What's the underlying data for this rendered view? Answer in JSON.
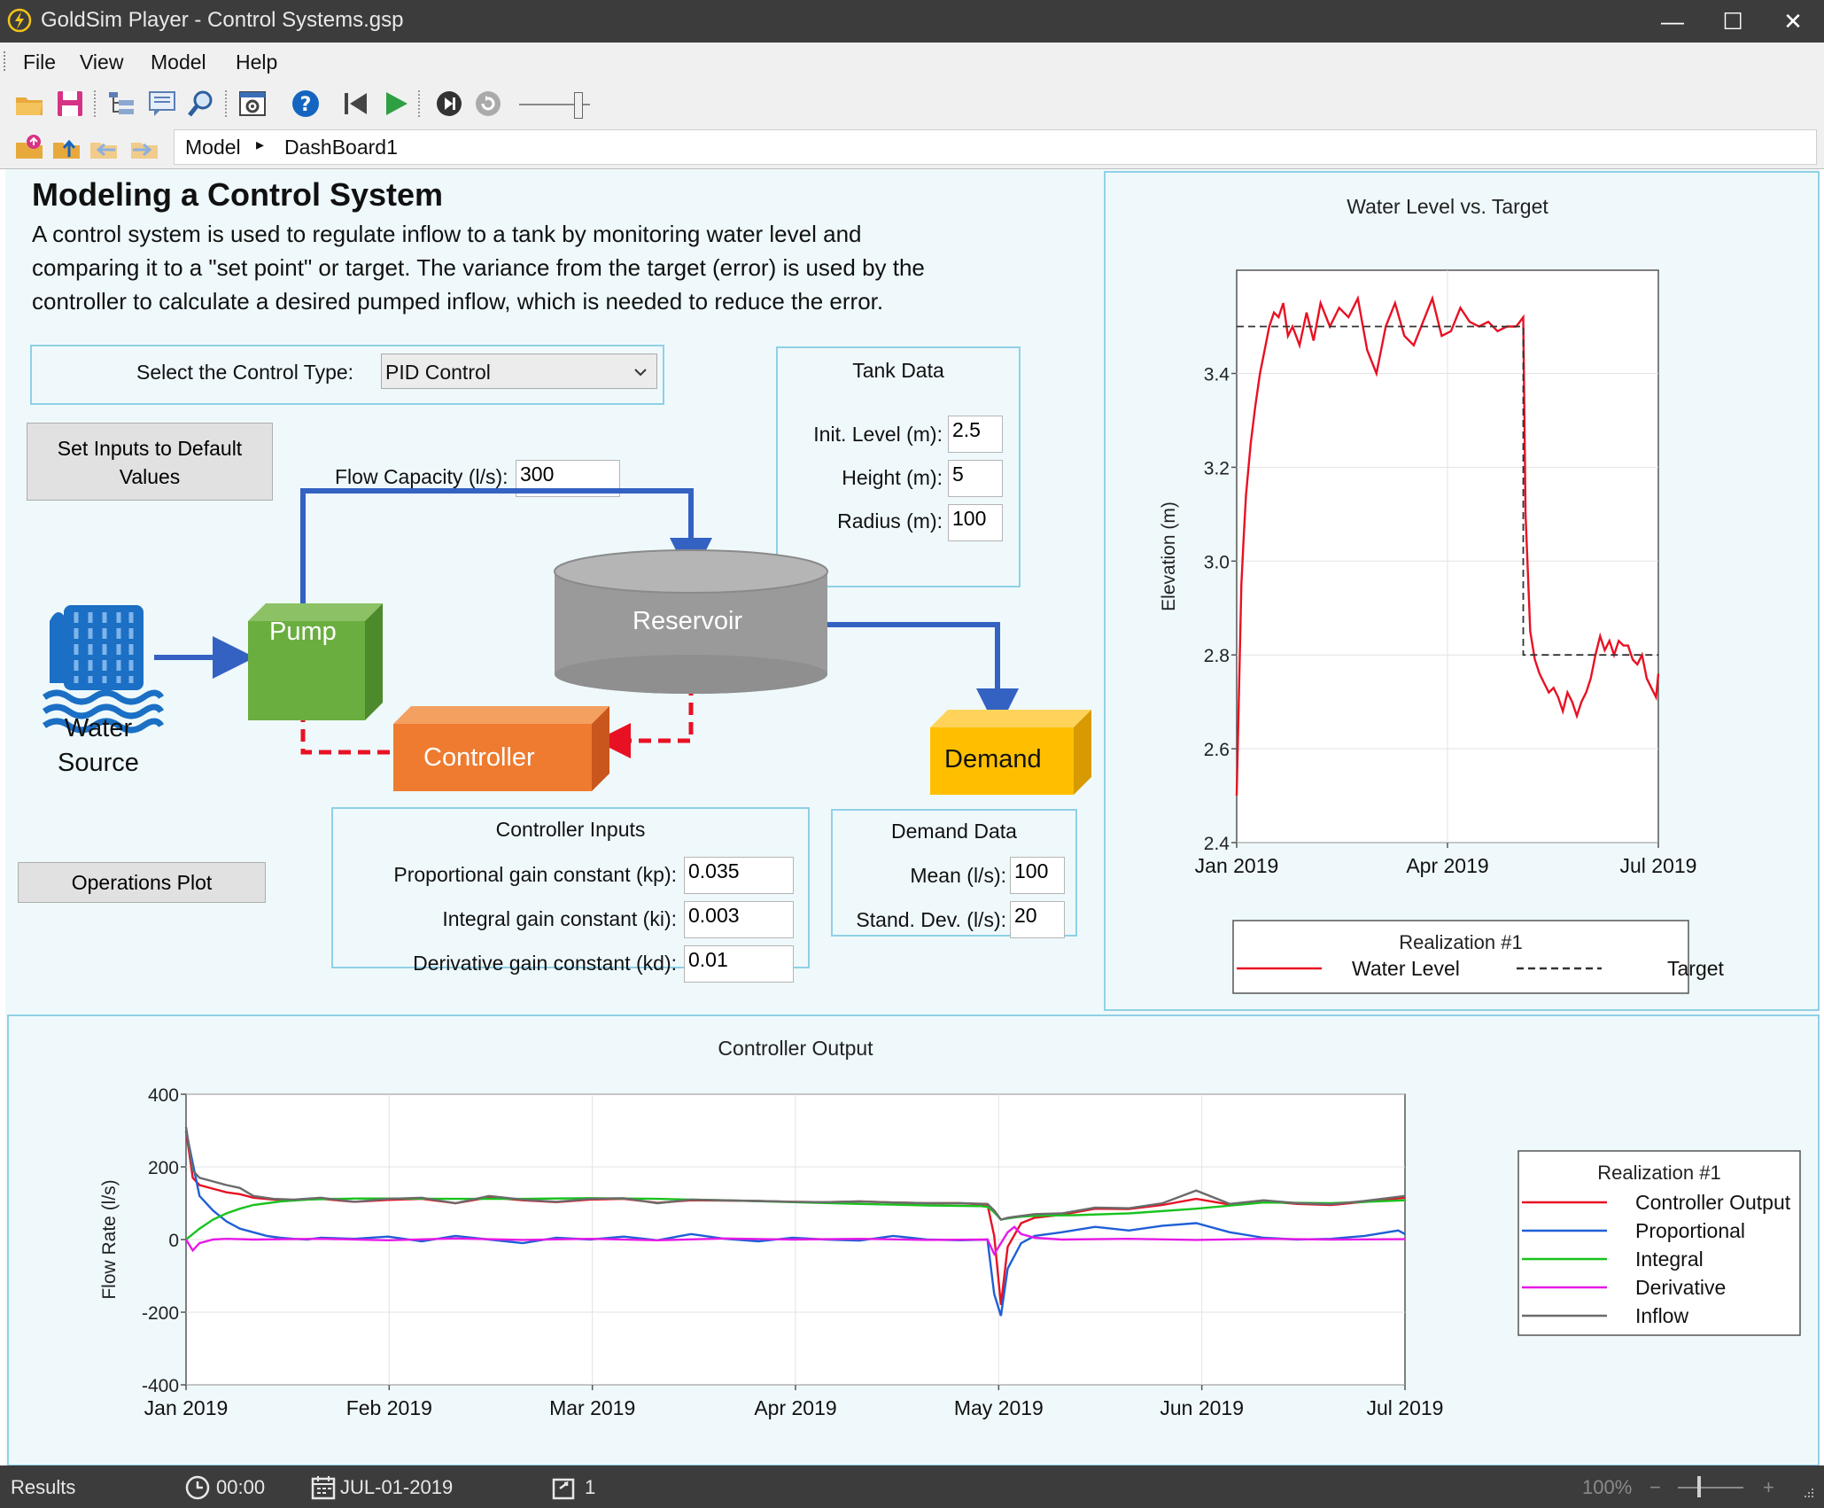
{
  "window": {
    "title": "GoldSim Player - Control Systems.gsp",
    "minimize": "—",
    "maximize": "☐",
    "close": "✕"
  },
  "menu": [
    "File",
    "View",
    "Model",
    "Help"
  ],
  "breadcrumb": {
    "root": "Model",
    "separator": "▸",
    "current": "DashBoard1"
  },
  "dashboard": {
    "title": "Modeling a Control System",
    "description": [
      "A control system is used to regulate inflow to a tank by monitoring water level and",
      "comparing it to a \"set point\" or target. The variance from the target (error) is used by the",
      "controller to calculate a desired pumped inflow, which is needed to reduce the error."
    ],
    "control_type_label": "Select the Control Type:",
    "control_type_value": "PID Control",
    "set_defaults_button": [
      "Set Inputs to Default",
      "Values"
    ],
    "operations_plot_button": "Operations Plot",
    "flow_capacity_label": "Flow Capacity (l/s):",
    "flow_capacity_value": "300",
    "tank": {
      "heading": "Tank Data",
      "init_level_label": "Init. Level (m):",
      "init_level_value": "2.5",
      "height_label": "Height (m):",
      "height_value": "5",
      "radius_label": "Radius (m):",
      "radius_value": "100"
    },
    "controller": {
      "heading": "Controller Inputs",
      "kp_label": "Proportional gain constant (kp):",
      "kp_value": "0.035",
      "ki_label": "Integral gain constant (ki):",
      "ki_value": "0.003",
      "kd_label": "Derivative gain constant (kd):",
      "kd_value": "0.01"
    },
    "demand": {
      "heading": "Demand Data",
      "mean_label": "Mean (l/s):",
      "mean_value": "100",
      "sd_label": "Stand. Dev. (l/s):",
      "sd_value": "20"
    },
    "diagram": {
      "source_label": [
        "Water",
        "Source"
      ],
      "pump": "Pump",
      "reservoir": "Reservoir",
      "controller": "Controller",
      "demand": "Demand"
    }
  },
  "chart_data": [
    {
      "type": "line",
      "title": "Water Level vs. Target",
      "xlabel": "",
      "ylabel": "Elevation (m)",
      "x_ticks": [
        "Jan 2019",
        "Apr 2019",
        "Jul 2019"
      ],
      "y_ticks": [
        "2.4",
        "2.6",
        "2.8",
        "3.0",
        "3.2",
        "3.4"
      ],
      "ylim": [
        2.4,
        3.62
      ],
      "x_range_days": [
        0,
        181
      ],
      "legend": {
        "title": "Realization #1",
        "placement": "bottom"
      },
      "series": [
        {
          "name": "Water Level",
          "color": "#e81123",
          "style": "solid",
          "x": [
            0,
            1,
            2,
            3,
            4,
            6,
            8,
            10,
            12,
            14,
            16,
            18,
            20,
            22,
            24,
            27,
            30,
            33,
            36,
            40,
            44,
            48,
            52,
            56,
            60,
            64,
            68,
            72,
            76,
            80,
            84,
            88,
            92,
            96,
            100,
            104,
            108,
            112,
            116,
            120,
            123,
            124,
            126,
            128,
            130,
            132,
            134,
            136,
            138,
            140,
            142,
            144,
            146,
            148,
            150,
            152,
            154,
            156,
            158,
            160,
            162,
            164,
            166,
            168,
            170,
            172,
            174,
            176,
            178,
            180,
            181
          ],
          "y": [
            2.5,
            2.72,
            2.95,
            3.05,
            3.14,
            3.25,
            3.33,
            3.4,
            3.45,
            3.5,
            3.53,
            3.52,
            3.55,
            3.48,
            3.5,
            3.46,
            3.53,
            3.47,
            3.55,
            3.5,
            3.54,
            3.52,
            3.56,
            3.45,
            3.4,
            3.5,
            3.55,
            3.48,
            3.46,
            3.51,
            3.56,
            3.48,
            3.49,
            3.54,
            3.51,
            3.5,
            3.51,
            3.49,
            3.5,
            3.5,
            3.52,
            3.1,
            2.85,
            2.79,
            2.76,
            2.74,
            2.72,
            2.73,
            2.71,
            2.68,
            2.72,
            2.7,
            2.67,
            2.7,
            2.72,
            2.75,
            2.8,
            2.84,
            2.81,
            2.83,
            2.8,
            2.83,
            2.82,
            2.82,
            2.79,
            2.78,
            2.8,
            2.75,
            2.73,
            2.71,
            2.76
          ]
        },
        {
          "name": "Target",
          "color": "#333333",
          "style": "dashed",
          "x": [
            0,
            123,
            123,
            181
          ],
          "y": [
            3.5,
            3.5,
            2.8,
            2.8
          ]
        }
      ]
    },
    {
      "type": "line",
      "title": "Controller Output",
      "xlabel": "",
      "ylabel": "Flow Rate (l/s)",
      "x_ticks": [
        "Jan 2019",
        "Feb 2019",
        "Mar 2019",
        "Apr 2019",
        "May 2019",
        "Jun 2019",
        "Jul 2019"
      ],
      "y_ticks": [
        "400",
        "200",
        "0",
        "-200",
        "-400"
      ],
      "ylim": [
        -400,
        400
      ],
      "x_range_days": [
        0,
        181
      ],
      "legend": {
        "title": "Realization #1",
        "placement": "right"
      },
      "series": [
        {
          "name": "Controller Output",
          "color": "#e81123",
          "x": [
            0,
            1,
            2,
            4,
            6,
            8,
            10,
            13,
            16,
            20,
            25,
            30,
            35,
            40,
            45,
            50,
            55,
            60,
            65,
            70,
            75,
            80,
            85,
            90,
            95,
            100,
            105,
            110,
            115,
            119,
            120,
            121,
            122,
            124,
            126,
            130,
            135,
            140,
            145,
            150,
            155,
            160,
            165,
            170,
            175,
            181
          ],
          "y": [
            300,
            170,
            150,
            140,
            130,
            125,
            115,
            110,
            108,
            112,
            104,
            109,
            112,
            100,
            116,
            108,
            103,
            110,
            112,
            101,
            108,
            107,
            106,
            104,
            103,
            105,
            102,
            100,
            100,
            96,
            10,
            -180,
            -20,
            45,
            60,
            68,
            85,
            84,
            95,
            112,
            96,
            106,
            98,
            95,
            104,
            115
          ]
        },
        {
          "name": "Proportional",
          "color": "#1f5fd6",
          "x": [
            0,
            2,
            4,
            6,
            8,
            10,
            12,
            14,
            16,
            18,
            20,
            25,
            30,
            35,
            40,
            45,
            50,
            55,
            60,
            65,
            70,
            75,
            80,
            85,
            90,
            95,
            100,
            105,
            110,
            115,
            119,
            120,
            121,
            122,
            124,
            126,
            130,
            135,
            140,
            145,
            150,
            155,
            160,
            165,
            170,
            175,
            180,
            181
          ],
          "y": [
            300,
            120,
            80,
            50,
            30,
            20,
            10,
            5,
            2,
            0,
            5,
            2,
            8,
            -5,
            10,
            0,
            -10,
            5,
            0,
            8,
            -2,
            15,
            2,
            -5,
            5,
            0,
            -3,
            10,
            0,
            -2,
            0,
            -150,
            -210,
            -80,
            -10,
            10,
            20,
            35,
            25,
            38,
            45,
            20,
            5,
            0,
            2,
            10,
            25,
            15
          ]
        },
        {
          "name": "Integral",
          "color": "#19c21e",
          "x": [
            0,
            2,
            4,
            6,
            8,
            10,
            14,
            18,
            22,
            26,
            30,
            40,
            50,
            60,
            70,
            80,
            90,
            100,
            110,
            118,
            119,
            120,
            121,
            122,
            124,
            126,
            128,
            132,
            140,
            150,
            160,
            170,
            181
          ],
          "y": [
            0,
            30,
            55,
            72,
            85,
            95,
            105,
            110,
            112,
            113,
            113,
            112,
            112,
            114,
            112,
            108,
            103,
            98,
            94,
            92,
            90,
            75,
            55,
            58,
            63,
            65,
            66,
            67,
            72,
            85,
            102,
            100,
            108
          ]
        },
        {
          "name": "Derivative",
          "color": "#e619e6",
          "x": [
            0,
            1,
            2,
            3,
            4,
            6,
            10,
            20,
            30,
            40,
            50,
            60,
            70,
            80,
            90,
            100,
            110,
            119,
            120,
            121,
            122,
            123,
            124,
            126,
            130,
            140,
            150,
            160,
            170,
            181
          ],
          "y": [
            0,
            -30,
            -10,
            -5,
            0,
            2,
            0,
            2,
            -2,
            3,
            -1,
            2,
            -2,
            3,
            0,
            2,
            -1,
            0,
            -40,
            -10,
            20,
            35,
            15,
            5,
            0,
            2,
            -1,
            2,
            0,
            1
          ]
        },
        {
          "name": "Inflow",
          "color": "#6b6b6b",
          "x": [
            0,
            1,
            2,
            4,
            6,
            8,
            10,
            13,
            16,
            20,
            25,
            30,
            35,
            40,
            45,
            50,
            55,
            60,
            65,
            70,
            75,
            80,
            85,
            90,
            95,
            100,
            105,
            110,
            115,
            119,
            120,
            121,
            122,
            124,
            126,
            130,
            135,
            140,
            145,
            150,
            155,
            160,
            165,
            170,
            175,
            181
          ],
          "y": [
            310,
            190,
            170,
            160,
            150,
            142,
            120,
            112,
            110,
            115,
            104,
            112,
            115,
            100,
            120,
            110,
            104,
            112,
            114,
            100,
            110,
            108,
            106,
            104,
            103,
            105,
            102,
            100,
            100,
            98,
            80,
            55,
            60,
            65,
            70,
            72,
            88,
            86,
            100,
            135,
            98,
            108,
            100,
            97,
            106,
            120
          ]
        }
      ]
    }
  ],
  "status": {
    "mode": "Results",
    "clock": "00:00",
    "date": "JUL-01-2019",
    "realization": "1",
    "zoom": "100%",
    "zoom_minus": "−",
    "zoom_plus": "+"
  }
}
